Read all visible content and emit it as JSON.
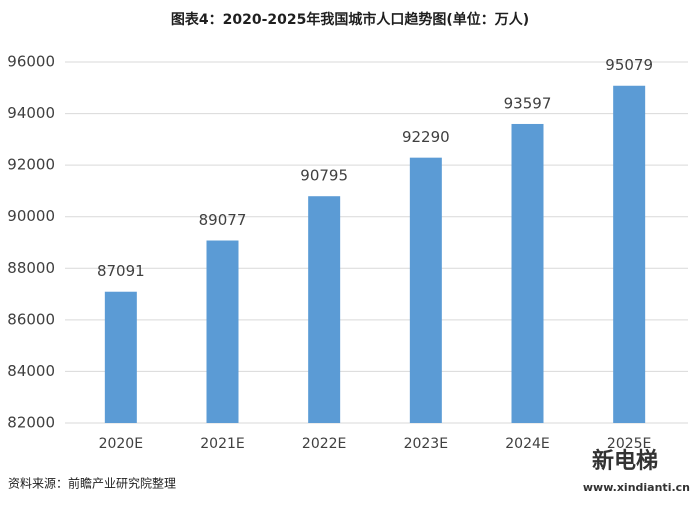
{
  "chart_data": {
    "type": "bar",
    "title": "图表4：2020-2025年我国城市人口趋势图(单位：万人)",
    "categories": [
      "2020E",
      "2021E",
      "2022E",
      "2023E",
      "2024E",
      "2025E"
    ],
    "values": [
      87091,
      89077,
      90795,
      92290,
      93597,
      95079
    ],
    "color": "#5b9bd5",
    "ylim": [
      82000,
      96000
    ],
    "yticks": [
      82000,
      84000,
      86000,
      88000,
      90000,
      92000,
      94000,
      96000
    ],
    "grid": true,
    "source": "资料来源：前瞻产业研究院整理",
    "watermark": "新电梯",
    "watermark_url": "www.xindianti.cn"
  }
}
